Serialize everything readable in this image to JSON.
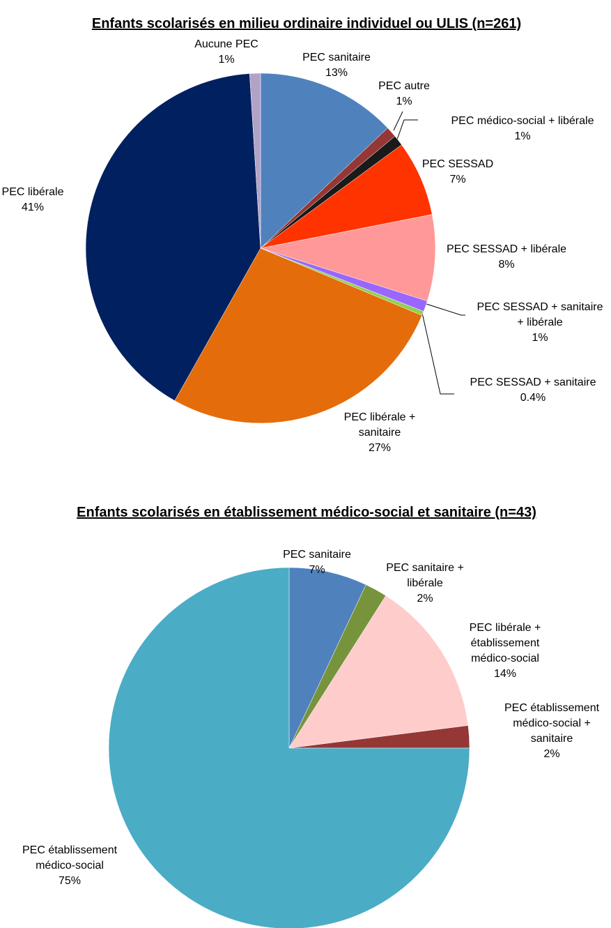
{
  "chart_data": [
    {
      "type": "pie",
      "title": "Enfants scolarisés en milieu ordinaire individuel ou ULIS (n=261)",
      "categories": [
        "PEC sanitaire",
        "PEC autre",
        "PEC médico-social + libérale",
        "PEC SESSAD",
        "PEC SESSAD + libérale",
        "PEC SESSAD + sanitaire + libérale",
        "PEC SESSAD + sanitaire",
        "PEC libérale + sanitaire",
        "PEC libérale",
        "Aucune PEC"
      ],
      "values": [
        13,
        1,
        1,
        7,
        8,
        1,
        0.4,
        27,
        41,
        1
      ],
      "value_labels": [
        "13%",
        "1%",
        "1%",
        "7%",
        "8%",
        "1%",
        "0.4%",
        "27%",
        "41%",
        "1%"
      ],
      "colors": [
        "#4f81bd",
        "#953735",
        "#1a1a1a",
        "#ff3300",
        "#ff9999",
        "#9966ff",
        "#92d050",
        "#e46c0a",
        "#002060",
        "#b3a2c7"
      ]
    },
    {
      "type": "pie",
      "title": "Enfants scolarisés en établissement médico-social et sanitaire (n=43)",
      "categories": [
        "PEC sanitaire",
        "PEC sanitaire + libérale",
        "PEC libérale + établissement médico-social",
        "PEC établissement médico-social + sanitaire",
        "PEC établissement médico-social"
      ],
      "values": [
        7,
        2,
        14,
        2,
        75
      ],
      "value_labels": [
        "7%",
        "2%",
        "14%",
        "2%",
        "75%"
      ],
      "colors": [
        "#4f81bd",
        "#77933c",
        "#ffcccc",
        "#953735",
        "#4bacc6"
      ]
    }
  ]
}
